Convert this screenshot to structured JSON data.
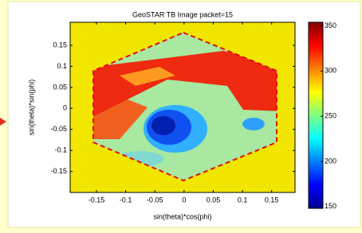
{
  "chart_data": {
    "type": "image",
    "title": "GeoSTAR TB Image packet=15",
    "xlabel": "sin(theta)*cos(phi)",
    "ylabel": "sin(theta)*sin(phi)",
    "xlim": [
      -0.195,
      0.19
    ],
    "ylim": [
      -0.2,
      0.205
    ],
    "xticks": [
      -0.15,
      -0.1,
      -0.05,
      0,
      0.05,
      0.1,
      0.15
    ],
    "yticks": [
      -0.15,
      -0.1,
      -0.05,
      0,
      0.05,
      0.1,
      0.15
    ],
    "colormap": "jet",
    "colorbar": {
      "clim": [
        148,
        354
      ],
      "ticks": [
        150,
        200,
        250,
        300,
        350
      ]
    }
  }
}
